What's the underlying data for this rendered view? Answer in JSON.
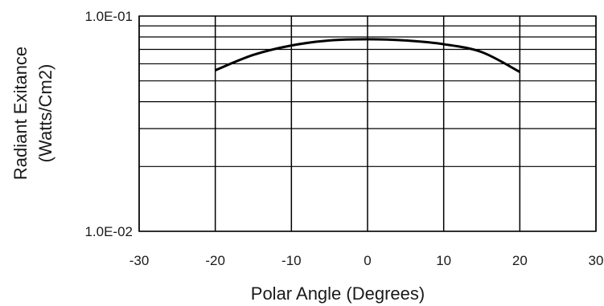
{
  "chart_data": {
    "type": "line",
    "title": "",
    "xlabel": "Polar Angle (Degrees)",
    "ylabel": [
      "Radiant Exitance",
      "(Watts/Cm2)"
    ],
    "xlim": [
      -30,
      30
    ],
    "ylim": [
      0.01,
      0.1
    ],
    "yscale": "log",
    "grid": true,
    "x_ticks": [
      -30,
      -20,
      -10,
      0,
      10,
      20,
      30
    ],
    "x_tick_labels": [
      "-30",
      "-20",
      "-10",
      "0",
      "10",
      "20",
      "30"
    ],
    "y_ticks": [
      0.01,
      0.1
    ],
    "y_tick_labels": [
      "1.0E-02",
      "1.0E-01"
    ],
    "series": [
      {
        "x": [
          -20,
          -15,
          -10,
          -5,
          0,
          5,
          10,
          15,
          20
        ],
        "y": [
          0.056,
          0.066,
          0.073,
          0.077,
          0.078,
          0.077,
          0.074,
          0.068,
          0.055
        ],
        "color": "#000000"
      }
    ]
  }
}
